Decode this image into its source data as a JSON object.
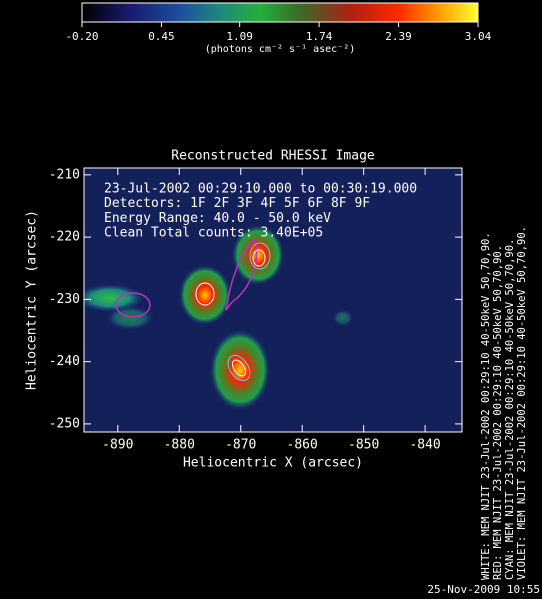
{
  "chart_data": {
    "type": "image",
    "title": "Reconstructed RHESSI Image",
    "x_label": "Heliocentric X (arcsec)",
    "y_label": "Heliocentric Y (arcsec)",
    "xlim": [
      -895.5,
      -834
    ],
    "xticks": [
      -890,
      -880,
      -870,
      -860,
      -850,
      -840
    ],
    "ylim": [
      -251.3,
      -208.9
    ],
    "yticks": [
      -210,
      -220,
      -230,
      -240,
      -250
    ],
    "annotations": [
      "23-Jul-2002 00:29:10.000 to 00:30:19.000",
      "Detectors: 1F 2F 3F 4F 5F 6F 8F 9F",
      "Energy Range: 40.0 - 50.0 keV",
      "Clean    Total counts: 3.40E+05"
    ],
    "colorbar": {
      "label": "(photons cm⁻² s⁻¹ asec⁻²)",
      "clim": [
        -0.2,
        3.04
      ],
      "ticks": [
        {
          "value": -0.2,
          "label": "-0.20"
        },
        0.45,
        1.09,
        1.74,
        2.39,
        3.04
      ]
    },
    "legend_lines": [
      "WHITE: MEM NJIT 23-Jul-2002 00:29:10 40-50keV 50,70,90.",
      "RED: MEM NJIT 23-Jul-2002 00:29:10 40-50keV 50,70,90.",
      "CYAN: MEM NJIT 23-Jul-2002 00:29:10 40-50keV 50,70,90.",
      "VIOLET: MEM NJIT 23-Jul-2002 00:29:10 40-50keV 50,70,90."
    ],
    "timestamp": "25-Nov-2009 10:55"
  }
}
